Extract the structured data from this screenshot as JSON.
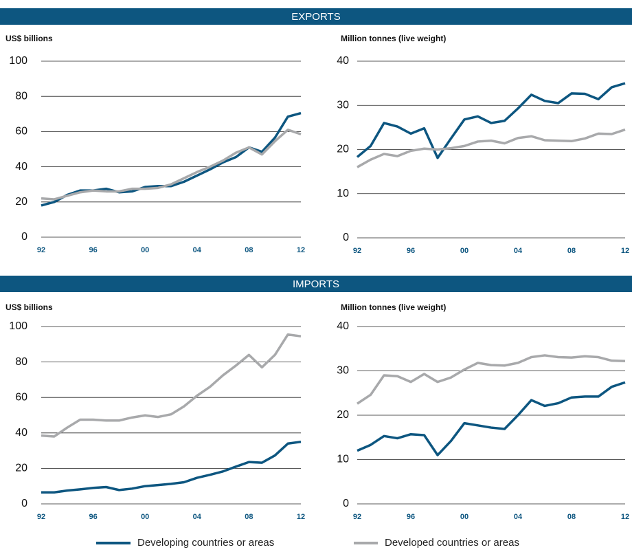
{
  "sections": [
    {
      "title": "EXPORTS"
    },
    {
      "title": "IMPORTS"
    }
  ],
  "chart_data": [
    {
      "type": "line",
      "y_label": "US$ billions",
      "x": [
        1992,
        1993,
        1994,
        1995,
        1996,
        1997,
        1998,
        1999,
        2000,
        2001,
        2002,
        2003,
        2004,
        2005,
        2006,
        2007,
        2008,
        2009,
        2010,
        2011,
        2012
      ],
      "xlim": [
        1992,
        2012
      ],
      "xticks": [
        {
          "value": 1992,
          "label": "92"
        },
        {
          "value": 1996,
          "label": "96"
        },
        {
          "value": 2000,
          "label": "00"
        },
        {
          "value": 2004,
          "label": "04"
        },
        {
          "value": 2008,
          "label": "08"
        },
        {
          "value": 2012,
          "label": "12"
        }
      ],
      "ylim": [
        0,
        100
      ],
      "yticks": [
        0,
        20,
        40,
        60,
        80,
        100
      ],
      "grid": true,
      "series": [
        {
          "name": "Developing countries or areas",
          "color": "#0d5680",
          "values": [
            18,
            20,
            24,
            26.5,
            26.5,
            27.5,
            25.5,
            26,
            28.5,
            29,
            29,
            31.5,
            35,
            38.5,
            42.5,
            45.5,
            51,
            48.5,
            56.5,
            68.5,
            70.5
          ]
        },
        {
          "name": "Developed countries or areas",
          "color": "#a8a9ab",
          "values": [
            22,
            21.5,
            23.5,
            25.5,
            26.5,
            26,
            26,
            27.5,
            27.5,
            28,
            30,
            33.5,
            37,
            40,
            43.5,
            48,
            51,
            47,
            54.5,
            61,
            58.5
          ]
        }
      ]
    },
    {
      "type": "line",
      "y_label": "Million tonnes (live weight)",
      "x": [
        1992,
        1993,
        1994,
        1995,
        1996,
        1997,
        1998,
        1999,
        2000,
        2001,
        2002,
        2003,
        2004,
        2005,
        2006,
        2007,
        2008,
        2009,
        2010,
        2011,
        2012
      ],
      "xlim": [
        1992,
        2012
      ],
      "xticks": [
        {
          "value": 1992,
          "label": "92"
        },
        {
          "value": 1996,
          "label": "96"
        },
        {
          "value": 2000,
          "label": "00"
        },
        {
          "value": 2004,
          "label": "04"
        },
        {
          "value": 2008,
          "label": "08"
        },
        {
          "value": 2012,
          "label": "12"
        }
      ],
      "ylim": [
        0,
        40
      ],
      "yticks": [
        0,
        10,
        20,
        30,
        40
      ],
      "grid": true,
      "series": [
        {
          "name": "Developing countries or areas",
          "color": "#0d5680",
          "values": [
            18.3,
            20.8,
            26,
            25.2,
            23.6,
            24.8,
            18.1,
            22.5,
            26.8,
            27.5,
            26,
            26.5,
            29.3,
            32.4,
            31,
            30.5,
            32.7,
            32.6,
            31.4,
            34.1,
            35
          ]
        },
        {
          "name": "Developed countries or areas",
          "color": "#a8a9ab",
          "values": [
            16,
            17.7,
            19,
            18.5,
            19.7,
            20.2,
            20,
            20.3,
            20.8,
            21.8,
            22,
            21.4,
            22.6,
            23,
            22.1,
            22,
            21.9,
            22.5,
            23.6,
            23.5,
            24.5
          ]
        }
      ]
    },
    {
      "type": "line",
      "y_label": "US$ billions",
      "x": [
        1992,
        1993,
        1994,
        1995,
        1996,
        1997,
        1998,
        1999,
        2000,
        2001,
        2002,
        2003,
        2004,
        2005,
        2006,
        2007,
        2008,
        2009,
        2010,
        2011,
        2012
      ],
      "xlim": [
        1992,
        2012
      ],
      "xticks": [
        {
          "value": 1992,
          "label": "92"
        },
        {
          "value": 1996,
          "label": "96"
        },
        {
          "value": 2000,
          "label": "00"
        },
        {
          "value": 2004,
          "label": "04"
        },
        {
          "value": 2008,
          "label": "08"
        },
        {
          "value": 2012,
          "label": "12"
        }
      ],
      "ylim": [
        0,
        100
      ],
      "yticks": [
        0,
        20,
        40,
        60,
        80,
        100
      ],
      "grid": true,
      "series": [
        {
          "name": "Developing countries or areas",
          "color": "#0d5680",
          "values": [
            6.5,
            6.5,
            7.5,
            8.2,
            9,
            9.5,
            7.8,
            8.6,
            10,
            10.6,
            11.3,
            12.2,
            14.7,
            16.4,
            18.3,
            21,
            23.6,
            23.2,
            27.3,
            34,
            35
          ]
        },
        {
          "name": "Developed countries or areas",
          "color": "#a8a9ab",
          "values": [
            38.5,
            38,
            43,
            47.5,
            47.5,
            47,
            47,
            48.7,
            49.9,
            49,
            50.5,
            55,
            61,
            66,
            72.5,
            78,
            84,
            77,
            84,
            95.5,
            94.5
          ]
        }
      ]
    },
    {
      "type": "line",
      "y_label": "Million tonnes (live weight)",
      "x": [
        1992,
        1993,
        1994,
        1995,
        1996,
        1997,
        1998,
        1999,
        2000,
        2001,
        2002,
        2003,
        2004,
        2005,
        2006,
        2007,
        2008,
        2009,
        2010,
        2011,
        2012
      ],
      "xlim": [
        1992,
        2012
      ],
      "xticks": [
        {
          "value": 1992,
          "label": "92"
        },
        {
          "value": 1996,
          "label": "96"
        },
        {
          "value": 2000,
          "label": "00"
        },
        {
          "value": 2004,
          "label": "04"
        },
        {
          "value": 2008,
          "label": "08"
        },
        {
          "value": 2012,
          "label": "12"
        }
      ],
      "ylim": [
        0,
        40
      ],
      "yticks": [
        0,
        10,
        20,
        30,
        40
      ],
      "grid": true,
      "series": [
        {
          "name": "Developing countries or areas",
          "color": "#0d5680",
          "values": [
            12,
            13.3,
            15.3,
            14.8,
            15.7,
            15.5,
            11,
            14.2,
            18.2,
            17.7,
            17.2,
            16.9,
            20,
            23.4,
            22.1,
            22.7,
            24,
            24.2,
            24.2,
            26.4,
            27.4
          ]
        },
        {
          "name": "Developed countries or areas",
          "color": "#a8a9ab",
          "values": [
            22.6,
            24.6,
            29,
            28.8,
            27.5,
            29.3,
            27.5,
            28.5,
            30.3,
            31.8,
            31.3,
            31.2,
            31.8,
            33.1,
            33.5,
            33.1,
            33,
            33.3,
            33.1,
            32.3,
            32.2
          ]
        }
      ]
    }
  ]
}
